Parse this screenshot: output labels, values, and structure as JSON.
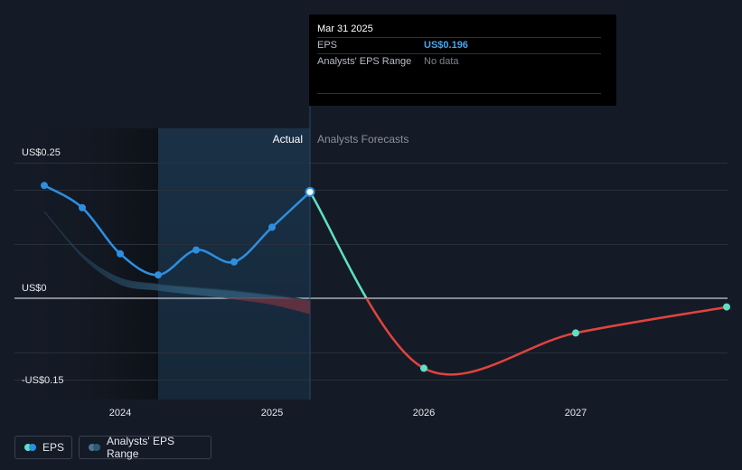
{
  "tooltip": {
    "date": "Mar 31 2025",
    "rows": [
      {
        "label": "EPS",
        "value": "US$0.196"
      },
      {
        "label": "Analysts' EPS Range",
        "value": "No data"
      }
    ]
  },
  "section_labels": {
    "actual": "Actual",
    "forecast": "Analysts Forecasts"
  },
  "legend": {
    "eps": "EPS",
    "range": "Analysts' EPS Range"
  },
  "colors": {
    "background": "#151b26",
    "eps_line": "#2e8fe0",
    "forecast_positive": "#5ee0c6",
    "forecast_negative": "#e0443e",
    "range_band": "#2f5a76"
  },
  "chart_data": {
    "type": "line",
    "y_tick_labels": [
      "US$0.25",
      "US$0",
      "-US$0.15"
    ],
    "x_tick_labels": [
      "2024",
      "2025",
      "2026",
      "2027"
    ],
    "ylim": [
      -0.15,
      0.25
    ],
    "series": [
      {
        "name": "EPS",
        "points": [
          {
            "x": 2023.5,
            "y": 0.208
          },
          {
            "x": 2023.75,
            "y": 0.167
          },
          {
            "x": 2024.0,
            "y": 0.082
          },
          {
            "x": 2024.25,
            "y": 0.043
          },
          {
            "x": 2024.5,
            "y": 0.089
          },
          {
            "x": 2024.75,
            "y": 0.067
          },
          {
            "x": 2025.0,
            "y": 0.131
          },
          {
            "x": 2025.25,
            "y": 0.196
          }
        ]
      },
      {
        "name": "Analysts Forecasts",
        "points": [
          {
            "x": 2025.25,
            "y": 0.196
          },
          {
            "x": 2026.0,
            "y": -0.129
          },
          {
            "x": 2027.0,
            "y": -0.064
          },
          {
            "x": 2028.0,
            "y": -0.016
          }
        ]
      },
      {
        "name": "Analysts' EPS Range",
        "upper": [
          {
            "x": 2023.5,
            "y": 0.16
          },
          {
            "x": 2023.75,
            "y": 0.08
          },
          {
            "x": 2024.0,
            "y": 0.037
          },
          {
            "x": 2024.25,
            "y": 0.026
          },
          {
            "x": 2024.5,
            "y": 0.02
          },
          {
            "x": 2024.75,
            "y": 0.014
          },
          {
            "x": 2025.0,
            "y": 0.006
          },
          {
            "x": 2025.25,
            "y": -0.004
          }
        ],
        "lower": [
          {
            "x": 2023.5,
            "y": 0.16
          },
          {
            "x": 2023.75,
            "y": 0.075
          },
          {
            "x": 2024.0,
            "y": 0.025
          },
          {
            "x": 2024.25,
            "y": 0.014
          },
          {
            "x": 2024.5,
            "y": 0.006
          },
          {
            "x": 2024.75,
            "y": -0.002
          },
          {
            "x": 2025.0,
            "y": -0.012
          },
          {
            "x": 2025.25,
            "y": -0.029
          }
        ]
      }
    ],
    "highlighted_point": {
      "x": 2025.25,
      "y": 0.196
    },
    "legend_position": "bottom-left",
    "grid": true
  }
}
